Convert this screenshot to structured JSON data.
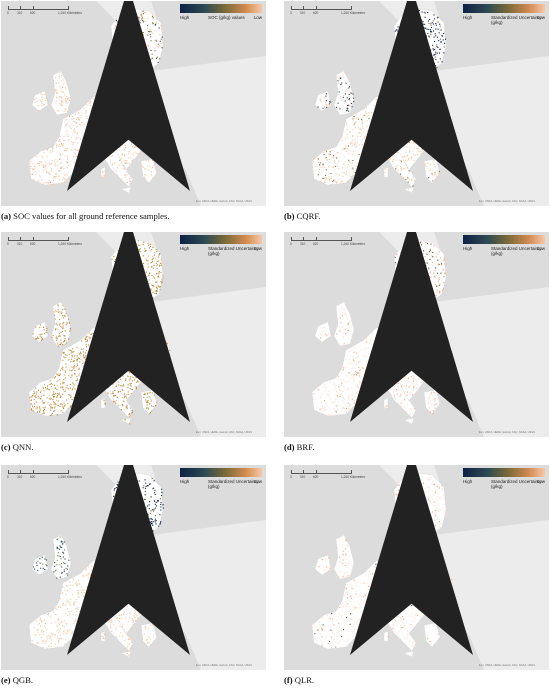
{
  "scale_bar": {
    "labels": [
      "0",
      "310",
      "620",
      "1,240 Kilometers"
    ]
  },
  "legend_ends": {
    "high": "High",
    "low": "Low"
  },
  "credit": "Esri, USGS, HERE, Garmin, FAO, NOAA, USGS",
  "panels": [
    {
      "id": "a",
      "letter": "(a)",
      "caption": " SOC values for all ground reference samples.",
      "legend_title": "SOC (g/kg) values",
      "pattern": "soc"
    },
    {
      "id": "b",
      "letter": "(b)",
      "caption": " CQRF.",
      "legend_title": "Standardized Uncertainty (g/kg)",
      "pattern": "cqrf"
    },
    {
      "id": "c",
      "letter": "(c)",
      "caption": " QNN.",
      "legend_title": "Standardized Uncertainty (g/kg)",
      "pattern": "qnn"
    },
    {
      "id": "d",
      "letter": "(d)",
      "caption": " BRF.",
      "legend_title": "Standardized Uncertainty (g/kg)",
      "pattern": "brf"
    },
    {
      "id": "e",
      "letter": "(e)",
      "caption": " QGB.",
      "legend_title": "Standardized Uncertainty (g/kg)",
      "pattern": "qgb"
    },
    {
      "id": "f",
      "letter": "(f)",
      "caption": " QLR.",
      "legend_title": "Standardized Uncertainty (g/kg)",
      "pattern": "qlr"
    }
  ],
  "colors": {
    "sea": "#dcdcdc",
    "land": "#ffffff",
    "non_eu_land": "#ececec",
    "high": "#0d2146",
    "mid": "#7a6a3a",
    "low": "#f7c8a8"
  }
}
